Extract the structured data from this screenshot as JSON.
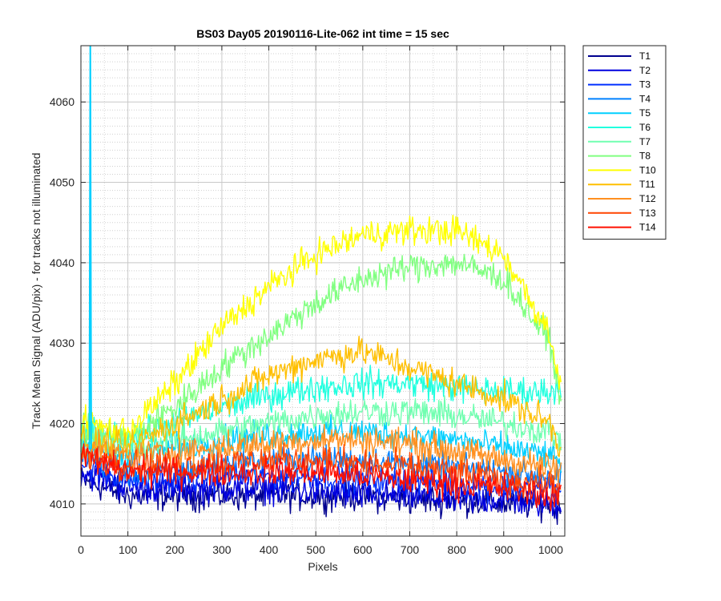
{
  "chart_data": {
    "type": "line",
    "title": "BS03 Day05 20190116-Lite-062 int time = 15 sec",
    "xlabel": "Pixels",
    "ylabel": "Track Mean Signal (ADU/pix) - for tracks not illuminated",
    "xlim": [
      0,
      1030
    ],
    "ylim": [
      4006,
      4067
    ],
    "xticks": [
      "0",
      "100",
      "200",
      "300",
      "400",
      "500",
      "600",
      "700",
      "800",
      "900",
      "1000"
    ],
    "yticks": [
      "4010",
      "4020",
      "4030",
      "4040",
      "4050",
      "4060"
    ],
    "grid": "major and minor (dotted)",
    "legend_position": "outside-right",
    "noise_note": "Each trace is noisy per-pixel data; values below are smoothed profiles",
    "x": [
      0,
      100,
      200,
      300,
      400,
      500,
      600,
      700,
      800,
      900,
      1000,
      1023
    ],
    "series": [
      {
        "name": "T1",
        "color": "#00008f",
        "noise": 1.3,
        "values": [
          4013,
          4011,
          4011,
          4011,
          4011,
          4011,
          4011,
          4010.5,
          4010.5,
          4010,
          4010,
          4009
        ]
      },
      {
        "name": "T2",
        "color": "#0000df",
        "noise": 1.3,
        "values": [
          4014,
          4012,
          4012,
          4012,
          4012,
          4011.5,
          4011,
          4011,
          4010.5,
          4010.5,
          4010,
          4010
        ]
      },
      {
        "name": "T3",
        "color": "#0030ff",
        "noise": 1.2,
        "values": [
          4015,
          4013,
          4013,
          4013.5,
          4013.5,
          4013.5,
          4013,
          4013,
          4012.5,
          4012,
          4012,
          4011
        ]
      },
      {
        "name": "T4",
        "color": "#0080ff",
        "noise": 1.2,
        "values": [
          4016,
          4014,
          4014,
          4015,
          4015.5,
          4015.5,
          4015.5,
          4015,
          4014.5,
          4014,
          4013.5,
          4013
        ]
      },
      {
        "name": "T5",
        "color": "#00cfff",
        "noise": 1.2,
        "values": [
          4017,
          4016,
          4017,
          4018,
          4018.5,
          4019,
          4019,
          4018.5,
          4018,
          4017,
          4016,
          4015
        ]
      },
      {
        "name": "T6",
        "color": "#20ffdf",
        "noise": 1.3,
        "values": [
          4019,
          4018,
          4020,
          4022,
          4023.5,
          4024.5,
          4025,
          4025,
          4024.5,
          4024,
          4024,
          4025
        ]
      },
      {
        "name": "T7",
        "color": "#70ffb0",
        "noise": 1.3,
        "values": [
          4018,
          4017,
          4018,
          4019,
          4020,
          4021,
          4021.5,
          4021.5,
          4021,
          4020,
          4019,
          4018
        ]
      },
      {
        "name": "T8",
        "color": "#80ff80",
        "noise": 1.3,
        "values": [
          4019,
          4018,
          4022,
          4027,
          4031,
          4035,
          4038,
          4039.5,
          4040,
          4038,
          4030,
          4022
        ]
      },
      {
        "name": "T10",
        "color": "#ffff00",
        "noise": 1.3,
        "values": [
          4020,
          4019,
          4025,
          4032,
          4037,
          4041,
          4043.5,
          4044,
          4044,
          4041,
          4031,
          4024
        ]
      },
      {
        "name": "T11",
        "color": "#ffbf00",
        "noise": 1.3,
        "values": [
          4018,
          4017,
          4020,
          4023,
          4026,
          4028,
          4029,
          4027,
          4025,
          4023,
          4020,
          4016
        ]
      },
      {
        "name": "T12",
        "color": "#ff9020",
        "noise": 1.3,
        "values": [
          4017,
          4016,
          4016.5,
          4017,
          4017.5,
          4018,
          4018,
          4017.5,
          4016.5,
          4015.5,
          4014.5,
          4014
        ]
      },
      {
        "name": "T13",
        "color": "#ff4500",
        "noise": 1.3,
        "values": [
          4016,
          4015,
          4015,
          4015,
          4015.5,
          4015.5,
          4015,
          4014.5,
          4014,
          4013,
          4012.5,
          4012
        ]
      },
      {
        "name": "T14",
        "color": "#ff1000",
        "noise": 1.3,
        "values": [
          4016,
          4014,
          4014,
          4014,
          4014,
          4014,
          4013.5,
          4013,
          4012.5,
          4012,
          4011,
          4011
        ]
      }
    ],
    "spike": {
      "series": "T5",
      "x": [
        18,
        22
      ],
      "y_peak": 4067
    }
  }
}
